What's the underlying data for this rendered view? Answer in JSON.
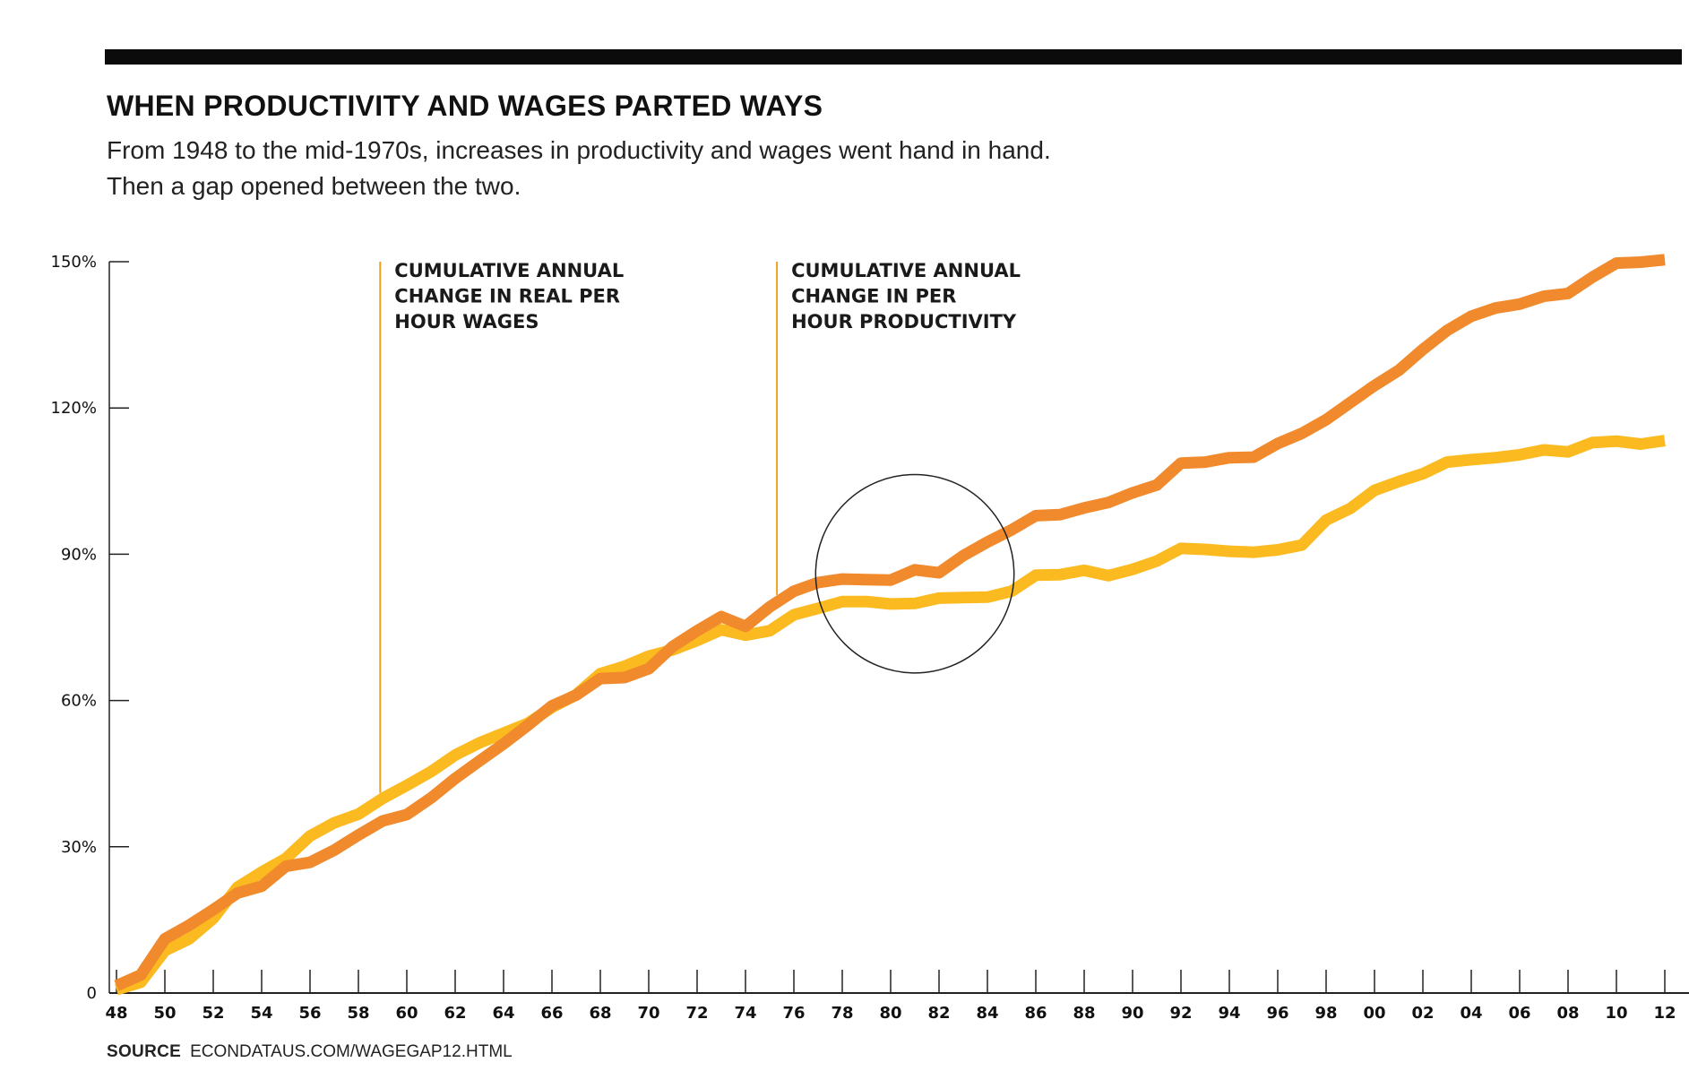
{
  "title": "WHEN PRODUCTIVITY AND WAGES PARTED WAYS",
  "subtitle": {
    "line1": "From 1948 to the mid-1970s, increases in productivity and wages went hand in hand.",
    "line2": "Then a gap opened between the two."
  },
  "source": {
    "label": "SOURCE",
    "text": "ECONDATAUS.COM/WAGEGAP12.HTML"
  },
  "colors": {
    "productivity": "#F08A2C",
    "wages": "#FBBA1F",
    "annotation_line": "#F0A020",
    "highlight_circle": "#222222"
  },
  "chart_data": {
    "type": "line",
    "ylim": [
      0,
      150
    ],
    "xlim": [
      1948,
      2012
    ],
    "grid": false,
    "y_ticks": [
      {
        "value": 0,
        "label": "0"
      },
      {
        "value": 30,
        "label": "30%"
      },
      {
        "value": 60,
        "label": "60%"
      },
      {
        "value": 90,
        "label": "90%"
      },
      {
        "value": 120,
        "label": "120%"
      },
      {
        "value": 150,
        "label": "150%"
      }
    ],
    "x_tick_labels": [
      "48",
      "50",
      "52",
      "54",
      "56",
      "58",
      "60",
      "62",
      "64",
      "66",
      "68",
      "70",
      "72",
      "74",
      "76",
      "78",
      "80",
      "82",
      "84",
      "86",
      "88",
      "90",
      "92",
      "94",
      "96",
      "98",
      "00",
      "02",
      "04",
      "06",
      "08",
      "10",
      "12"
    ],
    "x": [
      1948,
      1949,
      1950,
      1951,
      1952,
      1953,
      1954,
      1955,
      1956,
      1957,
      1958,
      1959,
      1960,
      1961,
      1962,
      1963,
      1964,
      1965,
      1966,
      1967,
      1968,
      1969,
      1970,
      1971,
      1972,
      1973,
      1974,
      1975,
      1976,
      1977,
      1978,
      1979,
      1980,
      1981,
      1982,
      1983,
      1984,
      1985,
      1986,
      1987,
      1988,
      1989,
      1990,
      1991,
      1992,
      1993,
      1994,
      1995,
      1996,
      1997,
      1998,
      1999,
      2000,
      2001,
      2002,
      2003,
      2004,
      2005,
      2006,
      2007,
      2008,
      2009,
      2010,
      2011,
      2012
    ],
    "series": [
      {
        "key": "productivity",
        "values": [
          1.5,
          3.7,
          11.1,
          13.9,
          17.1,
          20.5,
          21.9,
          26.0,
          26.8,
          29.3,
          32.4,
          35.3,
          36.6,
          40.0,
          44.0,
          47.6,
          51.1,
          54.9,
          58.9,
          61.1,
          64.5,
          64.7,
          66.5,
          71.1,
          74.3,
          77.2,
          75.2,
          79.2,
          82.4,
          84.2,
          84.9,
          84.8,
          84.7,
          86.8,
          86.2,
          89.7,
          92.5,
          95.0,
          97.9,
          98.1,
          99.5,
          100.6,
          102.6,
          104.2,
          108.7,
          108.9,
          109.8,
          109.9,
          112.7,
          114.8,
          117.6,
          121.1,
          124.6,
          127.7,
          132.0,
          135.9,
          138.8,
          140.5,
          141.3,
          142.9,
          143.5,
          146.8,
          149.7,
          149.9,
          150.4
        ]
      },
      {
        "key": "wages",
        "values": [
          0.7,
          2.2,
          8.7,
          11.1,
          15.3,
          21.7,
          24.8,
          27.6,
          32.2,
          34.9,
          36.7,
          39.9,
          42.6,
          45.4,
          48.8,
          51.3,
          53.3,
          55.3,
          58.6,
          61.2,
          65.5,
          67.0,
          69.1,
          70.4,
          72.3,
          74.5,
          73.4,
          74.3,
          77.6,
          78.9,
          80.3,
          80.3,
          79.8,
          79.9,
          81.0,
          81.1,
          81.2,
          82.4,
          85.7,
          85.8,
          86.7,
          85.6,
          86.9,
          88.6,
          91.2,
          91.0,
          90.6,
          90.4,
          90.9,
          91.9,
          97.0,
          99.4,
          103.1,
          104.9,
          106.5,
          108.9,
          109.4,
          109.8,
          110.4,
          111.4,
          111.0,
          112.9,
          113.2,
          112.6,
          113.3
        ]
      }
    ],
    "annotations": [
      {
        "key": "wages",
        "x": 1958.9,
        "lines": [
          "CUMULATIVE ANNUAL",
          "CHANGE IN REAL PER",
          "HOUR WAGES"
        ]
      },
      {
        "key": "productivity",
        "x": 1975.3,
        "lines": [
          "CUMULATIVE ANNUAL",
          "CHANGE IN PER",
          "HOUR PRODUCTIVITY"
        ]
      }
    ],
    "highlight": {
      "shape": "circle",
      "center": [
        1981,
        86
      ],
      "radius_years": 4.1
    }
  }
}
